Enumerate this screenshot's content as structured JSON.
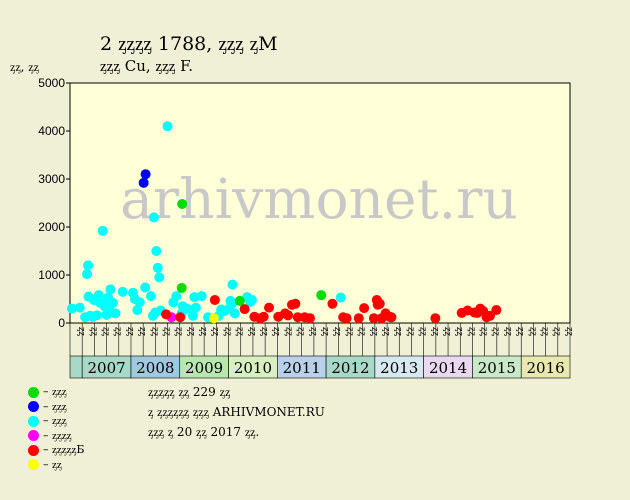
{
  "title_line1": "2 ᶎᶎᶎᶎ 1788, ᶎᶎᶎ ᶎМ",
  "title_line2": "ᶎᶎᶎ Cu, ᶎᶎᶎ F.",
  "y_unit": "ᶎᶎ, ᶎᶎ",
  "watermark": "arhivmonet.ru",
  "notes": [
    "ᶎᶎᶎᶎᶎ ᶎᶎ 229 ᶎᶎ",
    "ᶎ ᶎᶎᶎᶎᶎᶎ ᶎᶎᶎ ARHIVMONET.RU",
    "ᶎᶎᶎ ᶎ 20 ᶎᶎ 2017 ᶎᶎ."
  ],
  "chart_data": {
    "type": "scatter",
    "ylim": [
      0,
      5000
    ],
    "yticks": [
      "0",
      "1000",
      "2000",
      "3000",
      "4000",
      "5000"
    ],
    "quarter_labels": [
      "ᶎᶎ",
      "ᶎᶎ",
      "ᶎᶎ",
      "ᶎᶎ"
    ],
    "years": [
      "2007",
      "2008",
      "2009",
      "2010",
      "2011",
      "2012",
      "2013",
      "2014",
      "2015",
      "2016"
    ],
    "year_colors": [
      "#a8d8c8",
      "#a0c8e0",
      "#b8e8b0",
      "#d8f0c0",
      "#b8d0e8",
      "#a8d8c8",
      "#d8e8f0",
      "#e8d8f0",
      "#c8e8c8",
      "#e8e8b0"
    ],
    "x_start": 2006.75,
    "x_end": 2017.0,
    "legend": [
      {
        "label": "– ᶎᶎᶎ",
        "color": "#00dd00"
      },
      {
        "label": "– ᶎᶎᶎ",
        "color": "#0000ff"
      },
      {
        "label": "– ᶎᶎᶎ",
        "color": "#00ffff"
      },
      {
        "label": "– ᶎᶎᶎᶎ",
        "color": "#ff00ff"
      },
      {
        "label": "– ᶎᶎᶎᶎᶎБ",
        "color": "#ff0000"
      },
      {
        "label": "– ᶎᶎ",
        "color": "#ffff00"
      }
    ],
    "series": [
      {
        "color": "#00ffff",
        "points": [
          [
            2006.79,
            300
          ],
          [
            2006.95,
            320
          ],
          [
            2007.06,
            120
          ],
          [
            2007.1,
            1020
          ],
          [
            2007.12,
            1200
          ],
          [
            2007.13,
            550
          ],
          [
            2007.16,
            150
          ],
          [
            2007.22,
            130
          ],
          [
            2007.24,
            480
          ],
          [
            2007.3,
            160
          ],
          [
            2007.34,
            580
          ],
          [
            2007.37,
            420
          ],
          [
            2007.42,
            1920
          ],
          [
            2007.46,
            350
          ],
          [
            2007.5,
            170
          ],
          [
            2007.53,
            530
          ],
          [
            2007.56,
            270
          ],
          [
            2007.58,
            700
          ],
          [
            2007.63,
            420
          ],
          [
            2007.68,
            200
          ],
          [
            2007.83,
            650
          ],
          [
            2008.04,
            630
          ],
          [
            2008.08,
            500
          ],
          [
            2008.13,
            270
          ],
          [
            2008.18,
            430
          ],
          [
            2008.29,
            740
          ],
          [
            2008.41,
            560
          ],
          [
            2008.47,
            2200
          ],
          [
            2008.52,
            1500
          ],
          [
            2008.55,
            1150
          ],
          [
            2008.58,
            950
          ],
          [
            2008.61,
            260
          ],
          [
            2008.75,
            4100
          ],
          [
            2008.87,
            430
          ],
          [
            2008.93,
            560
          ],
          [
            2009.15,
            300
          ],
          [
            2009.27,
            150
          ],
          [
            2009.3,
            540
          ],
          [
            2009.33,
            320
          ],
          [
            2009.45,
            560
          ],
          [
            2009.58,
            120
          ],
          [
            2009.8,
            150
          ],
          [
            2009.85,
            280
          ],
          [
            2009.92,
            250
          ],
          [
            2010.01,
            300
          ],
          [
            2010.04,
            460
          ],
          [
            2010.08,
            800
          ],
          [
            2010.13,
            200
          ],
          [
            2010.38,
            540
          ],
          [
            2010.45,
            440
          ],
          [
            2010.48,
            480
          ],
          [
            2012.3,
            530
          ],
          [
            2009.04,
            200
          ],
          [
            2009.06,
            350
          ],
          [
            2008.45,
            150
          ],
          [
            2008.5,
            220
          ],
          [
            2010.07,
            400
          ]
        ]
      },
      {
        "color": "#0000ff",
        "points": [
          [
            2008.26,
            2920
          ],
          [
            2008.3,
            3100
          ]
        ]
      },
      {
        "color": "#00dd00",
        "points": [
          [
            2009.05,
            2480
          ],
          [
            2009.04,
            730
          ],
          [
            2010.23,
            460
          ],
          [
            2011.9,
            580
          ]
        ]
      },
      {
        "color": "#ff00ff",
        "points": [
          [
            2008.83,
            120
          ]
        ]
      },
      {
        "color": "#ff0000",
        "points": [
          [
            2008.72,
            180
          ],
          [
            2009.01,
            120
          ],
          [
            2009.72,
            480
          ],
          [
            2010.33,
            290
          ],
          [
            2010.53,
            130
          ],
          [
            2010.65,
            100
          ],
          [
            2010.72,
            130
          ],
          [
            2010.83,
            320
          ],
          [
            2011.02,
            130
          ],
          [
            2011.16,
            200
          ],
          [
            2011.22,
            160
          ],
          [
            2011.3,
            380
          ],
          [
            2011.37,
            400
          ],
          [
            2011.42,
            120
          ],
          [
            2011.56,
            120
          ],
          [
            2011.67,
            100
          ],
          [
            2012.13,
            400
          ],
          [
            2012.35,
            120
          ],
          [
            2012.42,
            100
          ],
          [
            2012.67,
            100
          ],
          [
            2012.78,
            310
          ],
          [
            2012.98,
            100
          ],
          [
            2013.04,
            480
          ],
          [
            2013.06,
            380
          ],
          [
            2013.1,
            400
          ],
          [
            2013.14,
            100
          ],
          [
            2013.22,
            200
          ],
          [
            2013.3,
            130
          ],
          [
            2013.34,
            120
          ],
          [
            2014.24,
            100
          ],
          [
            2014.78,
            210
          ],
          [
            2014.9,
            260
          ],
          [
            2015.04,
            220
          ],
          [
            2015.1,
            210
          ],
          [
            2015.16,
            300
          ],
          [
            2015.22,
            250
          ],
          [
            2015.29,
            120
          ],
          [
            2015.36,
            150
          ],
          [
            2015.49,
            270
          ]
        ]
      },
      {
        "color": "#ffff00",
        "points": [
          [
            2009.7,
            100
          ]
        ]
      }
    ]
  }
}
